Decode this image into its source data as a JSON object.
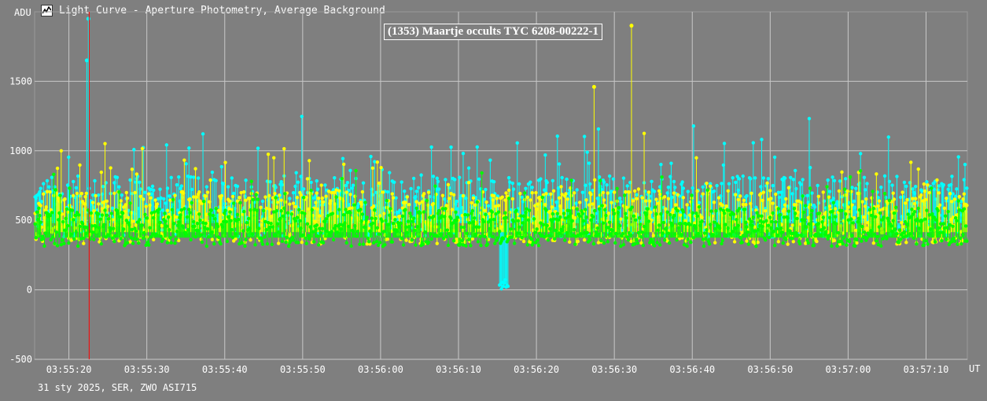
{
  "window": {
    "title": "Light Curve - Aperture Photometry, Average Background",
    "icon": "light-curve-app-icon"
  },
  "footer": {
    "text": "31 sty 2025, SER, ZWO ASI715"
  },
  "chart_data": {
    "type": "scatter",
    "title": "(1353) Maartje occults TYC 6208-00222-1",
    "xlabel": "UT",
    "ylabel": "ADU",
    "xlim": [
      "03:55:15.6",
      "03:57:15.3"
    ],
    "ylim": [
      -500,
      2000
    ],
    "yticks": [
      -500,
      0,
      500,
      1000,
      1500
    ],
    "xticks": [
      "03:55:20",
      "03:55:30",
      "03:55:40",
      "03:55:50",
      "03:56:00",
      "03:56:10",
      "03:56:20",
      "03:56:30",
      "03:56:40",
      "03:56:50",
      "03:57:00",
      "03:57:10"
    ],
    "grid": true,
    "marker": {
      "time": "03:55:22.6",
      "color": "#ff0000"
    },
    "series": [
      {
        "color": "#00ffff",
        "baseline": 600,
        "peak_to_peak_noise": 800,
        "event": {
          "start": "03:56:15.2",
          "end": "03:56:16.4",
          "min_value": 0
        },
        "spikes": [
          {
            "time": "03:55:22.5",
            "value": 1950
          },
          {
            "time": "03:55:22.3",
            "value": 1650
          }
        ]
      },
      {
        "color": "#ffff00",
        "baseline": 520,
        "peak_to_peak_noise": 700,
        "spikes": [
          {
            "time": "03:56:32.2",
            "value": 1900
          },
          {
            "time": "03:56:27.4",
            "value": 1460
          }
        ]
      },
      {
        "color": "#00ff00",
        "baseline": 450,
        "peak_to_peak_noise": 500,
        "spikes": []
      }
    ]
  }
}
